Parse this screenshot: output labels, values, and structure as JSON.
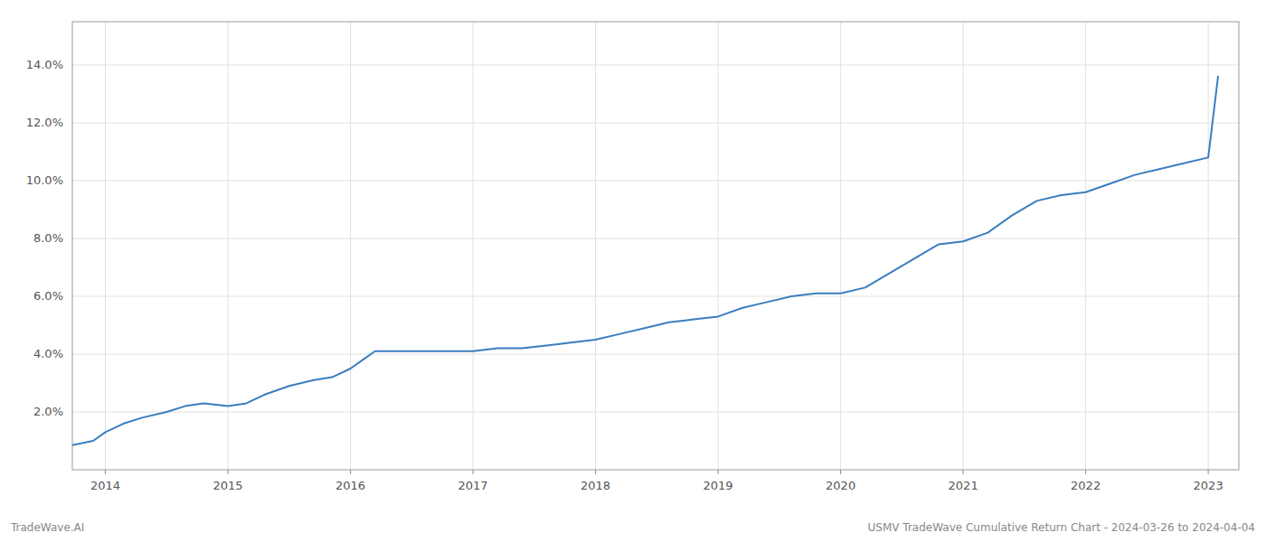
{
  "chart_data": {
    "type": "line",
    "x": [
      2013.73,
      2013.9,
      2014.0,
      2014.15,
      2014.3,
      2014.5,
      2014.65,
      2014.8,
      2015.0,
      2015.15,
      2015.3,
      2015.5,
      2015.7,
      2015.85,
      2016.0,
      2016.1,
      2016.2,
      2016.35,
      2016.5,
      2016.65,
      2016.8,
      2017.0,
      2017.2,
      2017.4,
      2017.6,
      2017.8,
      2018.0,
      2018.2,
      2018.4,
      2018.6,
      2018.8,
      2019.0,
      2019.2,
      2019.4,
      2019.6,
      2019.8,
      2020.0,
      2020.2,
      2020.4,
      2020.6,
      2020.8,
      2021.0,
      2021.2,
      2021.4,
      2021.6,
      2021.8,
      2022.0,
      2022.2,
      2022.4,
      2022.6,
      2022.8,
      2023.0,
      2023.08
    ],
    "values": [
      0.0085,
      0.01,
      0.013,
      0.016,
      0.018,
      0.02,
      0.022,
      0.023,
      0.022,
      0.023,
      0.026,
      0.029,
      0.031,
      0.032,
      0.035,
      0.038,
      0.041,
      0.041,
      0.041,
      0.041,
      0.041,
      0.041,
      0.042,
      0.042,
      0.043,
      0.044,
      0.045,
      0.047,
      0.049,
      0.051,
      0.052,
      0.053,
      0.056,
      0.058,
      0.06,
      0.061,
      0.061,
      0.063,
      0.068,
      0.073,
      0.078,
      0.079,
      0.082,
      0.088,
      0.093,
      0.095,
      0.096,
      0.099,
      0.102,
      0.104,
      0.106,
      0.108,
      0.136
    ],
    "color": "#3a7ebf",
    "xlim": [
      2013.73,
      2023.25
    ],
    "ylim": [
      0.0,
      0.155
    ],
    "xticks": [
      2014,
      2015,
      2016,
      2017,
      2018,
      2019,
      2020,
      2021,
      2022,
      2023
    ],
    "yticks": [
      {
        "value": 0.02,
        "label": "2.0%"
      },
      {
        "value": 0.04,
        "label": "4.0%"
      },
      {
        "value": 0.06,
        "label": "6.0%"
      },
      {
        "value": 0.08,
        "label": "8.0%"
      },
      {
        "value": 0.1,
        "label": "10.0%"
      },
      {
        "value": 0.12,
        "label": "12.0%"
      },
      {
        "value": 0.14,
        "label": "14.0%"
      }
    ],
    "grid": true,
    "annotations": [
      "TradeWave.AI",
      "USMV TradeWave Cumulative Return Chart - 2024-03-26 to 2024-04-04"
    ]
  }
}
